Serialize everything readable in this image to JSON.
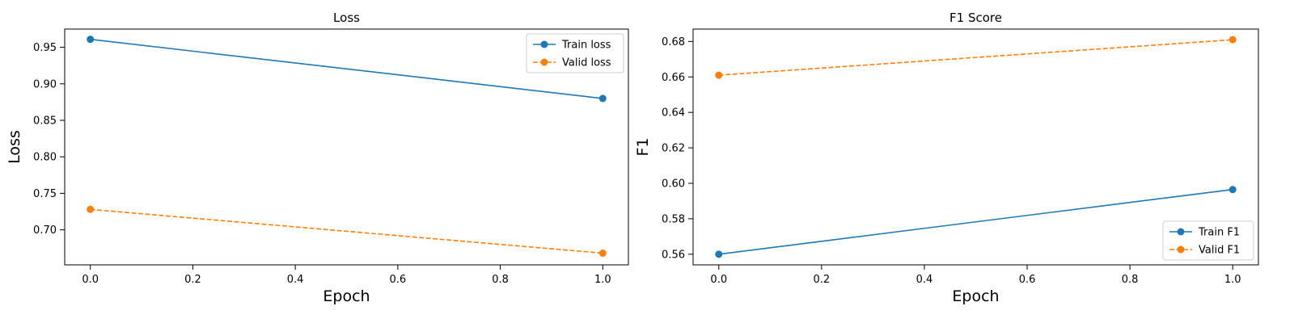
{
  "chart_data": [
    {
      "type": "line",
      "title": "Loss",
      "xlabel": "Epoch",
      "ylabel": "Loss",
      "x": [
        0.0,
        1.0
      ],
      "xlim": [
        -0.05,
        1.05
      ],
      "ylim": [
        0.652,
        0.975
      ],
      "xticks": [
        "0.0",
        "0.2",
        "0.4",
        "0.6",
        "0.8",
        "1.0"
      ],
      "yticks": [
        "0.70",
        "0.75",
        "0.80",
        "0.85",
        "0.90",
        "0.95"
      ],
      "grid": false,
      "legend_position": "top-right",
      "series": [
        {
          "name": "Train loss",
          "values": [
            0.961,
            0.88
          ],
          "color": "#1f77b4",
          "linestyle": "solid",
          "marker": "circle"
        },
        {
          "name": "Valid loss",
          "values": [
            0.728,
            0.668
          ],
          "color": "#ff7f0e",
          "linestyle": "dashed",
          "marker": "circle"
        }
      ]
    },
    {
      "type": "line",
      "title": "F1 Score",
      "xlabel": "Epoch",
      "ylabel": "F1",
      "x": [
        0.0,
        1.0
      ],
      "xlim": [
        -0.05,
        1.05
      ],
      "ylim": [
        0.554,
        0.687
      ],
      "xticks": [
        "0.0",
        "0.2",
        "0.4",
        "0.6",
        "0.8",
        "1.0"
      ],
      "yticks": [
        "0.56",
        "0.58",
        "0.60",
        "0.62",
        "0.64",
        "0.66",
        "0.68"
      ],
      "grid": false,
      "legend_position": "bottom-right",
      "series": [
        {
          "name": "Train F1",
          "values": [
            0.56,
            0.5965
          ],
          "color": "#1f77b4",
          "linestyle": "solid",
          "marker": "circle"
        },
        {
          "name": "Valid F1",
          "values": [
            0.661,
            0.681
          ],
          "color": "#ff7f0e",
          "linestyle": "dashed",
          "marker": "circle"
        }
      ]
    }
  ]
}
